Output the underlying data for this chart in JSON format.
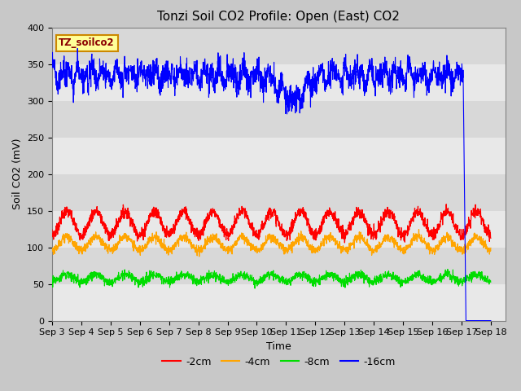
{
  "title": "Tonzi Soil CO2 Profile: Open (East) CO2",
  "xlabel": "Time",
  "ylabel": "Soil CO2 (mV)",
  "ylim": [
    0,
    400
  ],
  "yticks": [
    0,
    50,
    100,
    150,
    200,
    250,
    300,
    350,
    400
  ],
  "xtick_labels": [
    "Sep 3",
    "Sep 4",
    "Sep 5",
    "Sep 6",
    "Sep 7",
    "Sep 8",
    "Sep 9",
    "Sep 10",
    "Sep 11",
    "Sep 12",
    "Sep 13",
    "Sep 14",
    "Sep 15",
    "Sep 16",
    "Sep 17",
    "Sep 18"
  ],
  "fig_bg_color": "#c8c8c8",
  "plot_bg_color": "#e8e8e8",
  "band_colors": [
    "#e8e8e8",
    "#d8d8d8"
  ],
  "legend_label": "TZ_soilco2",
  "legend_bg": "#ffff99",
  "legend_border": "#cc8800",
  "series": {
    "2cm": {
      "color": "#ff0000",
      "label": "-2cm"
    },
    "4cm": {
      "color": "#ffa500",
      "label": "-4cm"
    },
    "8cm": {
      "color": "#00dd00",
      "label": "-8cm"
    },
    "16cm": {
      "color": "#0000ff",
      "label": "-16cm"
    }
  },
  "num_points": 2160,
  "total_days": 15,
  "drop_day": 14.05,
  "title_fontsize": 11,
  "axis_label_fontsize": 9,
  "tick_fontsize": 8
}
